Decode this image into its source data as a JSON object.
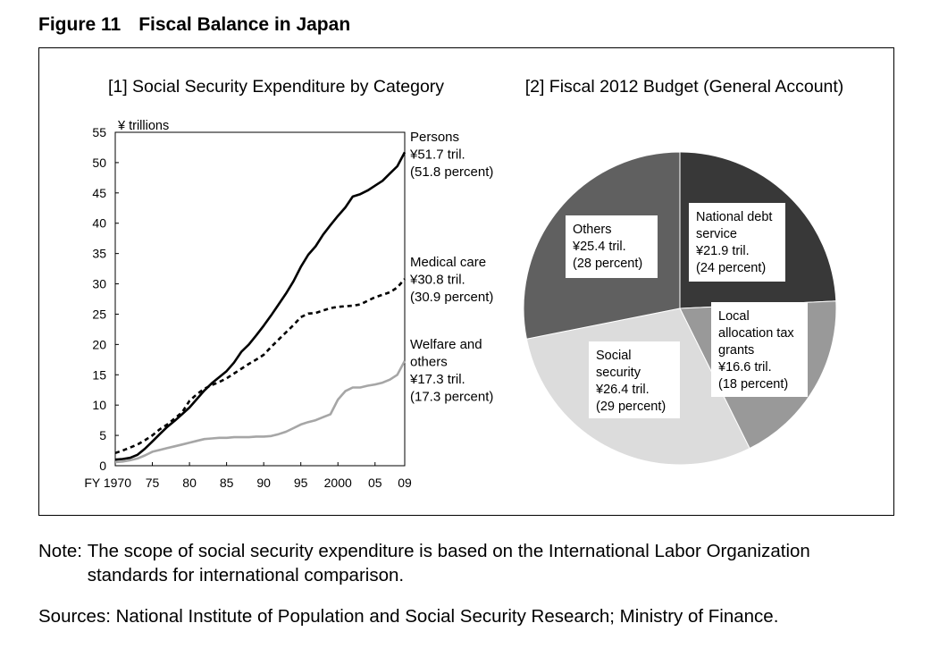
{
  "figure": {
    "number": "Figure 11",
    "title": "Fiscal Balance in Japan"
  },
  "chart_data": [
    {
      "type": "line",
      "title": "[1] Social Security Expenditure by Category",
      "ylabel": "¥ trillions",
      "ylim": [
        0,
        55
      ],
      "y_ticks": [
        0,
        5,
        10,
        15,
        20,
        25,
        30,
        35,
        40,
        45,
        50,
        55
      ],
      "x_range": [
        1970,
        2009
      ],
      "x_ticks": [
        {
          "value": 1970,
          "label": "FY 1970"
        },
        {
          "value": 1975,
          "label": "75"
        },
        {
          "value": 1980,
          "label": "80"
        },
        {
          "value": 1985,
          "label": "85"
        },
        {
          "value": 1990,
          "label": "90"
        },
        {
          "value": 1995,
          "label": "95"
        },
        {
          "value": 2000,
          "label": "2000"
        },
        {
          "value": 2005,
          "label": "05"
        },
        {
          "value": 2009,
          "label": "09"
        }
      ],
      "series": [
        {
          "name": "Persons",
          "style": "solid",
          "color": "#000000",
          "label_lines": [
            "Persons",
            "¥51.7 tril.",
            "(51.8 percent)"
          ],
          "x": [
            1970,
            1971,
            1972,
            1973,
            1974,
            1975,
            1976,
            1977,
            1978,
            1979,
            1980,
            1981,
            1982,
            1983,
            1984,
            1985,
            1986,
            1987,
            1988,
            1989,
            1990,
            1991,
            1992,
            1993,
            1994,
            1995,
            1996,
            1997,
            1998,
            1999,
            2000,
            2001,
            2002,
            2003,
            2004,
            2005,
            2006,
            2007,
            2008,
            2009
          ],
          "values": [
            1.0,
            1.1,
            1.3,
            1.8,
            2.8,
            4.0,
            5.2,
            6.4,
            7.4,
            8.5,
            9.6,
            11.0,
            12.4,
            13.6,
            14.6,
            15.6,
            17.0,
            18.8,
            20.0,
            21.5,
            23.1,
            24.8,
            26.6,
            28.4,
            30.4,
            32.8,
            34.8,
            36.2,
            38.1,
            39.7,
            41.2,
            42.6,
            44.4,
            44.8,
            45.4,
            46.2,
            47.0,
            48.2,
            49.4,
            51.7
          ]
        },
        {
          "name": "Medical care",
          "style": "dashed",
          "color": "#000000",
          "label_lines": [
            "Medical care",
            "¥30.8 tril.",
            "(30.9 percent)"
          ],
          "x": [
            1970,
            1971,
            1972,
            1973,
            1974,
            1975,
            1976,
            1977,
            1978,
            1979,
            1980,
            1981,
            1982,
            1983,
            1984,
            1985,
            1986,
            1987,
            1988,
            1989,
            1990,
            1991,
            1992,
            1993,
            1994,
            1995,
            1996,
            1997,
            1998,
            1999,
            2000,
            2001,
            2002,
            2003,
            2004,
            2005,
            2006,
            2007,
            2008,
            2009
          ],
          "values": [
            2.1,
            2.5,
            3.0,
            3.5,
            4.2,
            5.0,
            6.0,
            6.8,
            7.8,
            8.8,
            10.7,
            11.8,
            12.7,
            13.3,
            13.8,
            14.4,
            15.2,
            16.0,
            16.8,
            17.5,
            18.3,
            19.6,
            20.8,
            22.0,
            23.2,
            24.5,
            25.1,
            25.2,
            25.6,
            26.0,
            26.2,
            26.3,
            26.4,
            26.6,
            27.2,
            27.8,
            28.2,
            28.6,
            29.4,
            30.8
          ]
        },
        {
          "name": "Welfare and others",
          "style": "solid",
          "color": "#a6a6a6",
          "label_lines": [
            "Welfare and",
            "others",
            "¥17.3 tril.",
            "(17.3 percent)"
          ],
          "x": [
            1970,
            1971,
            1972,
            1973,
            1974,
            1975,
            1976,
            1977,
            1978,
            1979,
            1980,
            1981,
            1982,
            1983,
            1984,
            1985,
            1986,
            1987,
            1988,
            1989,
            1990,
            1991,
            1992,
            1993,
            1994,
            1995,
            1996,
            1997,
            1998,
            1999,
            2000,
            2001,
            2002,
            2003,
            2004,
            2005,
            2006,
            2007,
            2008,
            2009
          ],
          "values": [
            0.6,
            0.7,
            0.9,
            1.2,
            1.7,
            2.3,
            2.6,
            2.9,
            3.2,
            3.5,
            3.8,
            4.1,
            4.4,
            4.5,
            4.6,
            4.6,
            4.7,
            4.7,
            4.7,
            4.8,
            4.8,
            4.9,
            5.2,
            5.6,
            6.2,
            6.8,
            7.2,
            7.5,
            8.0,
            8.5,
            10.9,
            12.3,
            12.9,
            12.9,
            13.2,
            13.4,
            13.7,
            14.2,
            15.0,
            17.3
          ]
        }
      ]
    },
    {
      "type": "pie",
      "title": "[2] Fiscal 2012 Budget (General Account)",
      "slices": [
        {
          "name": "National debt service",
          "value": 21.9,
          "percent": 24,
          "color": "#383838",
          "label_lines": [
            "National debt",
            "service",
            "¥21.9 tril.",
            "(24 percent)"
          ]
        },
        {
          "name": "Local allocation tax grants",
          "value": 16.6,
          "percent": 18,
          "color": "#999999",
          "label_lines": [
            "Local",
            "allocation tax",
            "grants",
            "¥16.6 tril.",
            "(18 percent)"
          ]
        },
        {
          "name": "Social security",
          "value": 26.4,
          "percent": 29,
          "color": "#dcdcdc",
          "label_lines": [
            "Social",
            "security",
            "¥26.4 tril.",
            "(29 percent)"
          ]
        },
        {
          "name": "Others",
          "value": 25.4,
          "percent": 28,
          "color": "#606060",
          "label_lines": [
            "Others",
            "¥25.4 tril.",
            "(28 percent)"
          ]
        }
      ]
    }
  ],
  "note": {
    "label": "Note: ",
    "text": "The scope of social security expenditure is based on the International Labor Organization standards for international comparison."
  },
  "sources": "Sources: National Institute of Population and Social Security Research; Ministry of Finance."
}
